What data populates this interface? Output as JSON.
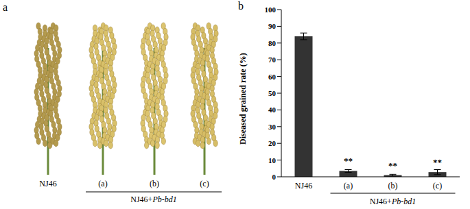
{
  "photo_panel": {
    "panel_label": "a",
    "lanes": [
      "NJ46",
      "(a)",
      "(b)",
      "(c)"
    ],
    "group_label": "NJ46+Pb-bd1"
  },
  "chart_data": {
    "type": "bar",
    "panel_label": "b",
    "categories": [
      "NJ46",
      "(a)",
      "(b)",
      "(c)"
    ],
    "values": [
      84,
      3.5,
      1,
      2.8
    ],
    "errors": [
      2,
      0.8,
      0.5,
      1.5
    ],
    "significance": [
      null,
      "**",
      "**",
      "**"
    ],
    "group_label": "NJ46+Pb-bd1",
    "y_label": "Diseased grained rate (%)",
    "color": "#333333",
    "ylim": [
      0,
      100
    ],
    "yticks": [
      0,
      10,
      20,
      30,
      40,
      50,
      60,
      70,
      80,
      90,
      100
    ],
    "grid": false
  }
}
